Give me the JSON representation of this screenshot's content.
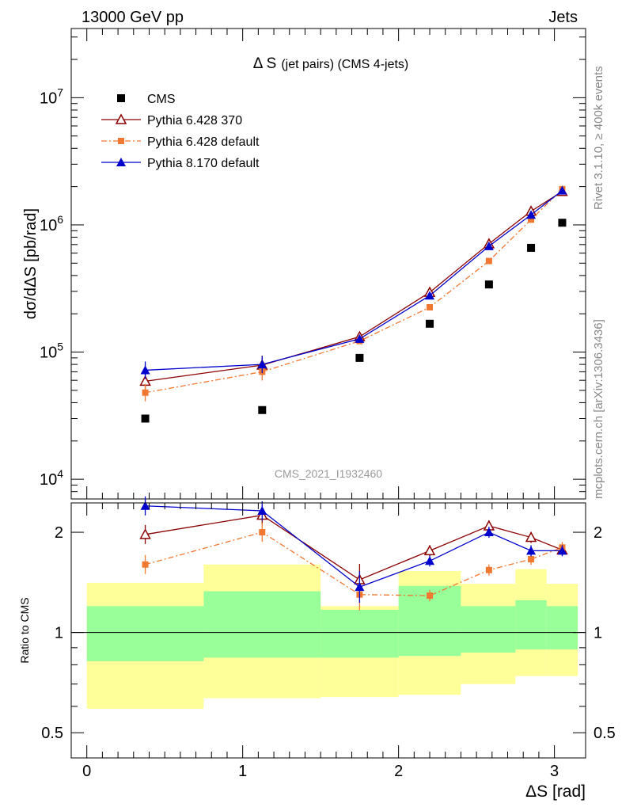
{
  "header": {
    "left": "13000 GeV pp",
    "right": "Jets",
    "side_top": "Rivet 3.1.10, ≥ 400k events",
    "side_bottom": "mcplots.cern.ch [arXiv:1306.3436]"
  },
  "chart_data": [
    {
      "type": "scatter",
      "title": "Δ S",
      "title_suffix": "(jet pairs) (CMS 4-jets)",
      "watermark": "CMS_2021_I1932460",
      "ylabel": "dσ/dΔS [pb/rad]",
      "yscale": "log",
      "ylim": [
        7000,
        35000000
      ],
      "xlim": [
        -0.1,
        3.2
      ],
      "yticks": [
        {
          "value": 10000,
          "base": "10",
          "exp": "4"
        },
        {
          "value": 100000,
          "base": "10",
          "exp": "5"
        },
        {
          "value": 1000000,
          "base": "10",
          "exp": "6"
        },
        {
          "value": 10000000,
          "base": "10",
          "exp": "7"
        }
      ],
      "legend_position": "top-left",
      "series": [
        {
          "name": "CMS",
          "color": "#000000",
          "marker": "square",
          "x": [
            0.375,
            1.125,
            1.75,
            2.2,
            2.58,
            2.85,
            3.05
          ],
          "y": [
            30000,
            35000,
            90000,
            167000,
            340000,
            660000,
            1040000
          ]
        },
        {
          "name": "Pythia 6.428 370",
          "color": "#8b0000",
          "marker": "open-triangle",
          "line": "solid",
          "x": [
            0.375,
            1.125,
            1.75,
            2.2,
            2.58,
            2.85,
            3.05
          ],
          "y": [
            59000,
            79000,
            132000,
            295000,
            710000,
            1280000,
            1830000
          ]
        },
        {
          "name": "Pythia 6.428 default",
          "color": "#f07830",
          "marker": "small-square",
          "line": "dashdot",
          "x": [
            0.375,
            1.125,
            1.75,
            2.2,
            2.58,
            2.85,
            3.05
          ],
          "y": [
            48000,
            70000,
            122000,
            225000,
            520000,
            1100000,
            1910000
          ]
        },
        {
          "name": "Pythia 8.170 default",
          "color": "#0000cc",
          "marker": "filled-triangle",
          "line": "solid",
          "x": [
            0.375,
            1.125,
            1.75,
            2.2,
            2.58,
            2.85,
            3.05
          ],
          "y": [
            72000,
            80000,
            127000,
            278000,
            680000,
            1200000,
            1860000
          ]
        }
      ]
    },
    {
      "type": "scatter",
      "ylabel": "Ratio to CMS",
      "xlabel": "ΔS [rad]",
      "yscale": "log",
      "ylim": [
        0.42,
        2.45
      ],
      "xlim": [
        -0.1,
        3.2
      ],
      "yticks": [
        {
          "value": 0.5,
          "label": "0.5"
        },
        {
          "value": 1,
          "label": "1"
        },
        {
          "value": 2,
          "label": "2"
        }
      ],
      "xticks": [
        {
          "value": 0,
          "label": "0"
        },
        {
          "value": 1,
          "label": "1"
        },
        {
          "value": 2,
          "label": "2"
        },
        {
          "value": 3,
          "label": "3"
        }
      ],
      "uncertainty_bands": [
        {
          "x0": 0.0,
          "x1": 0.75,
          "yellow": [
            0.59,
            1.41
          ],
          "green": [
            0.82,
            1.2
          ]
        },
        {
          "x0": 0.75,
          "x1": 1.5,
          "yellow": [
            0.635,
            1.6
          ],
          "green": [
            0.84,
            1.33
          ]
        },
        {
          "x0": 1.5,
          "x1": 2.0,
          "yellow": [
            0.64,
            1.2
          ],
          "green": [
            0.84,
            1.17
          ]
        },
        {
          "x0": 2.0,
          "x1": 2.4,
          "yellow": [
            0.65,
            1.53
          ],
          "green": [
            0.85,
            1.38
          ]
        },
        {
          "x0": 2.4,
          "x1": 2.75,
          "yellow": [
            0.7,
            1.4
          ],
          "green": [
            0.87,
            1.2
          ]
        },
        {
          "x0": 2.75,
          "x1": 2.95,
          "yellow": [
            0.74,
            1.55
          ],
          "green": [
            0.89,
            1.25
          ]
        },
        {
          "x0": 2.95,
          "x1": 3.15,
          "yellow": [
            0.74,
            1.4
          ],
          "green": [
            0.89,
            1.2
          ]
        }
      ],
      "series": [
        {
          "name": "Pythia 6.428 370",
          "color": "#8b0000",
          "x": [
            0.375,
            1.125,
            1.75,
            2.2,
            2.58,
            2.85,
            3.05
          ],
          "y": [
            1.97,
            2.25,
            1.44,
            1.76,
            2.09,
            1.93,
            1.77
          ]
        },
        {
          "name": "Pythia 6.428 default",
          "color": "#f07830",
          "x": [
            0.375,
            1.125,
            1.75,
            2.2,
            2.58,
            2.85,
            3.05
          ],
          "y": [
            1.6,
            2.0,
            1.3,
            1.29,
            1.54,
            1.66,
            1.8
          ]
        },
        {
          "name": "Pythia 8.170 default",
          "color": "#0000cc",
          "x": [
            0.375,
            1.125,
            1.75,
            2.2,
            2.58,
            2.85,
            3.05
          ],
          "y": [
            2.4,
            2.32,
            1.37,
            1.64,
            2.0,
            1.76,
            1.76
          ]
        }
      ]
    }
  ]
}
